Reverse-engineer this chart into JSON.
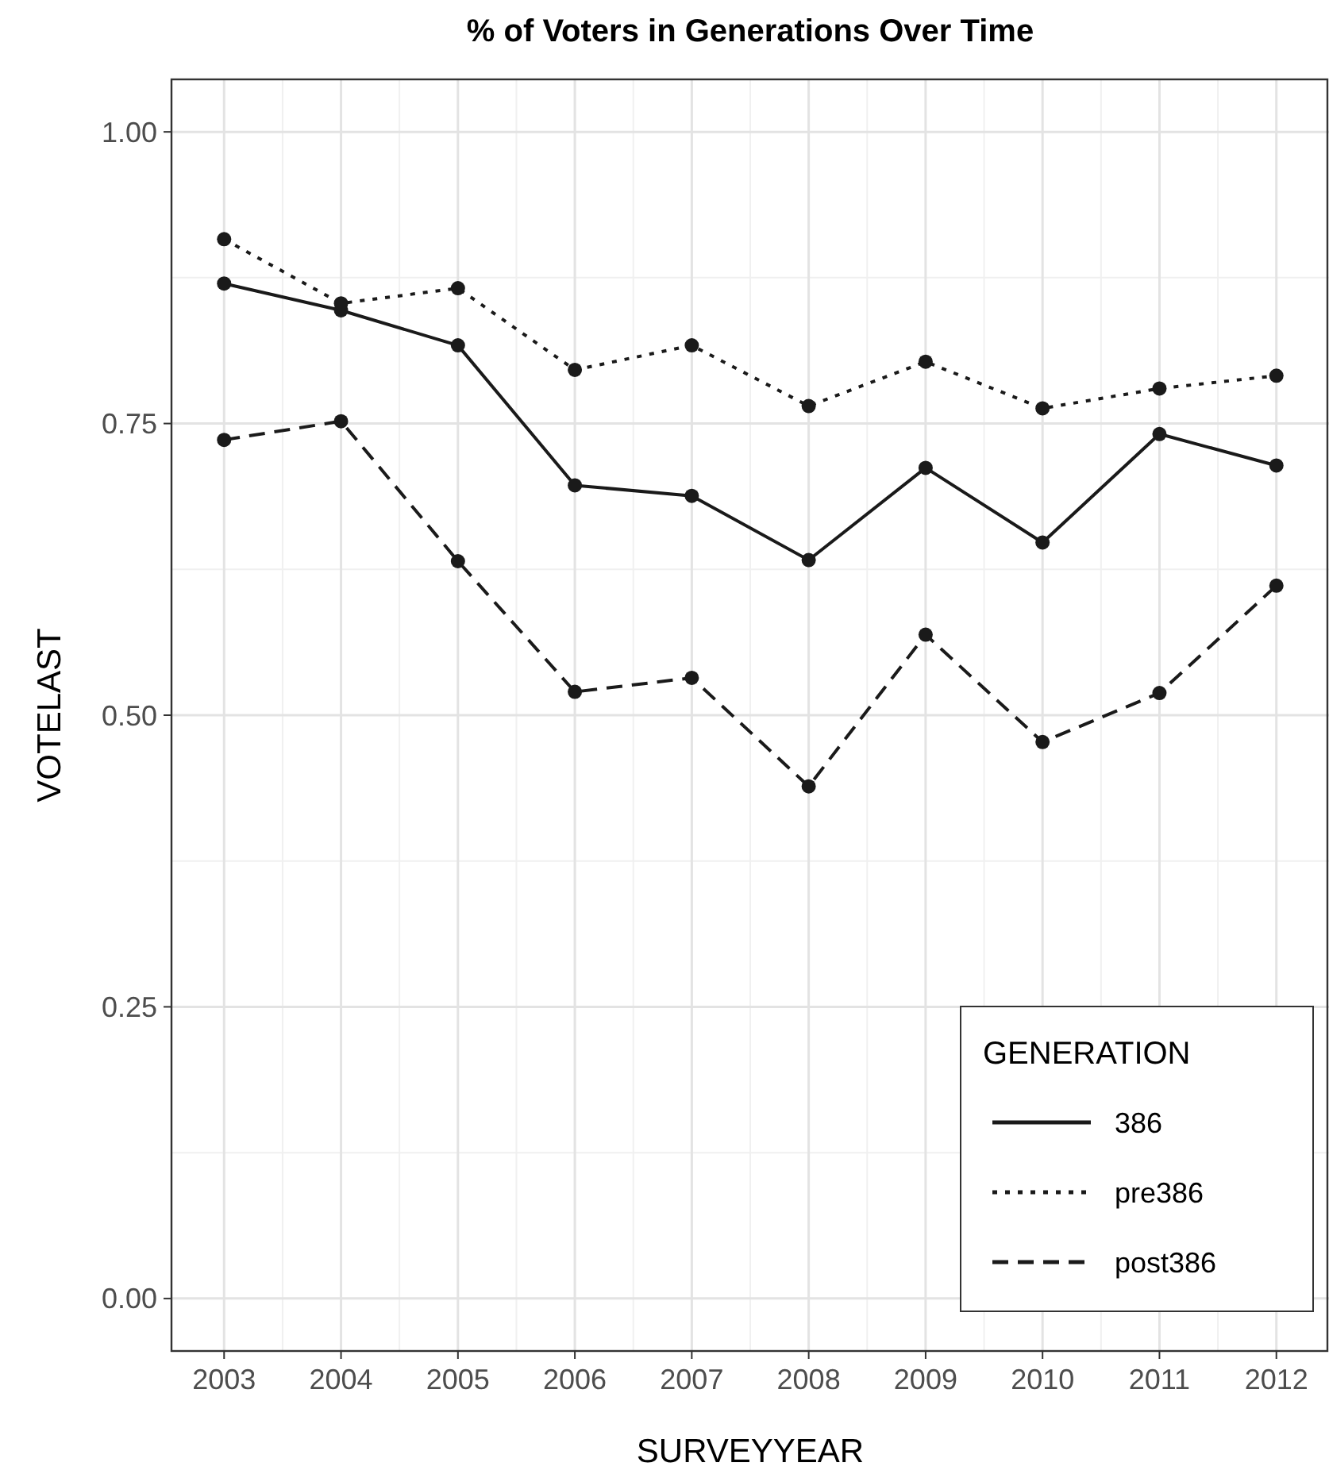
{
  "chart_data": {
    "type": "line",
    "title": "% of Voters in Generations Over Time",
    "xlabel": "SURVEYYEAR",
    "ylabel": "VOTELAST",
    "legend_title": "GENERATION",
    "x": [
      2003,
      2004,
      2005,
      2006,
      2007,
      2008,
      2009,
      2010,
      2011,
      2012
    ],
    "series": [
      {
        "name": "386",
        "color": "#1a1a1a",
        "line_style": "solid",
        "values": [
          0.87,
          0.847,
          0.817,
          0.697,
          0.688,
          0.633,
          0.712,
          0.648,
          0.741,
          0.714
        ]
      },
      {
        "name": "pre386",
        "color": "#1a1a1a",
        "line_style": "dotted",
        "values": [
          0.908,
          0.853,
          0.866,
          0.796,
          0.817,
          0.765,
          0.803,
          0.763,
          0.78,
          0.791
        ]
      },
      {
        "name": "post386",
        "color": "#1a1a1a",
        "line_style": "dashed",
        "values": [
          0.736,
          0.752,
          0.632,
          0.52,
          0.532,
          0.439,
          0.569,
          0.477,
          0.519,
          0.611
        ]
      }
    ],
    "xlim": [
      2002.55,
      2012.45
    ],
    "xticks": [
      2003,
      2004,
      2005,
      2006,
      2007,
      2008,
      2009,
      2010,
      2011,
      2012
    ],
    "ylim": [
      -0.045,
      1.045
    ],
    "yticks": [
      {
        "value": 0,
        "label": "0.00"
      },
      {
        "value": 0.25,
        "label": "0.25"
      },
      {
        "value": 0.5,
        "label": "0.50"
      },
      {
        "value": 0.75,
        "label": "0.75"
      },
      {
        "value": 1,
        "label": "1.00"
      }
    ],
    "grid": true,
    "legend": "bottom right",
    "marker": "circle"
  }
}
